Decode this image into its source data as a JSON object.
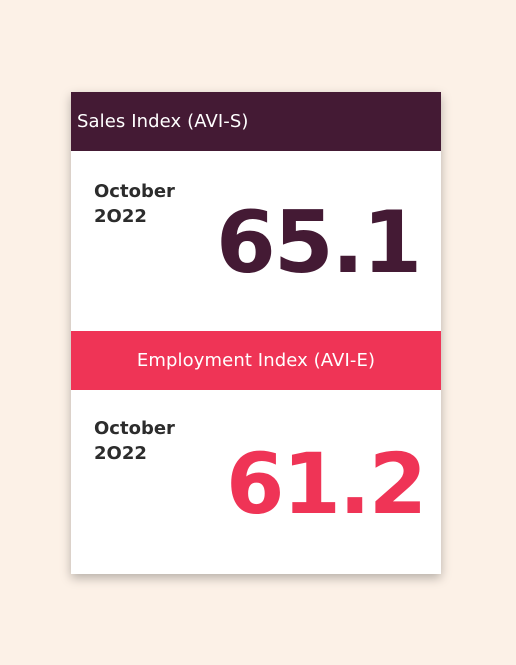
{
  "sales": {
    "title": "Sales Index (AVI-S)",
    "period": "October\n2O22",
    "value": "65.1"
  },
  "employment": {
    "title": "Employment Index (AVI-E)",
    "period": "October\n2O22",
    "value": "61.2"
  },
  "colors": {
    "sales_accent": "#441a34",
    "employment_accent": "#ef3456",
    "background": "#fcf1e7"
  }
}
